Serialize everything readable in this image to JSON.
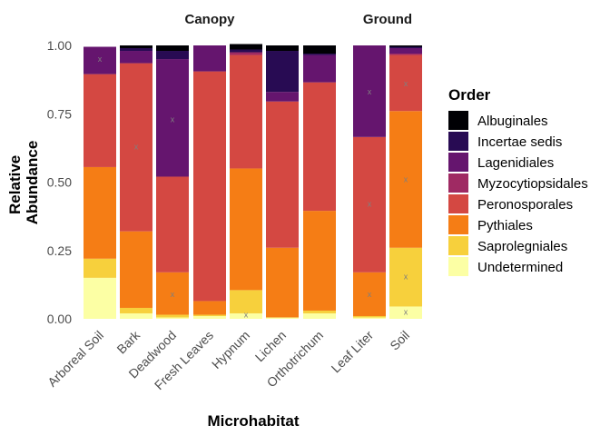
{
  "chart_data": {
    "type": "bar",
    "stacked": true,
    "facets": [
      "Canopy",
      "Ground"
    ],
    "xlabel": "Microhabitat",
    "ylabel": "Relative Abundance",
    "ylim": [
      0,
      1
    ],
    "yticks": [
      "0.00",
      "0.25",
      "0.50",
      "0.75",
      "1.00"
    ],
    "grid": false,
    "legend": {
      "title": "Order",
      "position": "right"
    },
    "categories": [
      {
        "facet": "Canopy",
        "name": "Arboreal Soil"
      },
      {
        "facet": "Canopy",
        "name": "Bark"
      },
      {
        "facet": "Canopy",
        "name": "Deadwood"
      },
      {
        "facet": "Canopy",
        "name": "Fresh Leaves"
      },
      {
        "facet": "Canopy",
        "name": "Hypnum"
      },
      {
        "facet": "Canopy",
        "name": "Lichen"
      },
      {
        "facet": "Canopy",
        "name": "Orthotrichum"
      },
      {
        "facet": "Ground",
        "name": "Leaf Liter"
      },
      {
        "facet": "Ground",
        "name": "Soil"
      }
    ],
    "series": [
      {
        "name": "Undetermined",
        "color": "#fcffa4",
        "values": [
          0.15,
          0.02,
          0.005,
          0.01,
          0.02,
          0.005,
          0.02,
          0.005,
          0.045
        ]
      },
      {
        "name": "Saprolegniales",
        "color": "#f7d03c",
        "values": [
          0.07,
          0.02,
          0.01,
          0.005,
          0.085,
          0.0,
          0.01,
          0.005,
          0.215
        ]
      },
      {
        "name": "Pythiales",
        "color": "#f57d15",
        "values": [
          0.335,
          0.28,
          0.155,
          0.05,
          0.445,
          0.255,
          0.365,
          0.16,
          0.5
        ]
      },
      {
        "name": "Peronosporales",
        "color": "#d44842",
        "values": [
          0.34,
          0.615,
          0.35,
          0.84,
          0.415,
          0.535,
          0.47,
          0.495,
          0.205
        ]
      },
      {
        "name": "Myzocytiopsidales",
        "color": "#9f2a63",
        "values": [
          0.0,
          0.0,
          0.0,
          0.0,
          0.01,
          0.0,
          0.0,
          0.0,
          0.005
        ]
      },
      {
        "name": "Lagenidiales",
        "color": "#65156e",
        "values": [
          0.1,
          0.045,
          0.43,
          0.095,
          0.0,
          0.035,
          0.1,
          0.335,
          0.02
        ]
      },
      {
        "name": "Incertae sedis",
        "color": "#280b53",
        "values": [
          0.0,
          0.01,
          0.03,
          0.0,
          0.01,
          0.15,
          0.005,
          0.0,
          0.005
        ]
      },
      {
        "name": "Albuginales",
        "color": "#000004",
        "values": [
          0.0,
          0.01,
          0.02,
          0.0,
          0.02,
          0.02,
          0.03,
          0.0,
          0.005
        ]
      }
    ],
    "markers": [
      {
        "category": "Arboreal Soil",
        "y": 0.95
      },
      {
        "category": "Bark",
        "y": 0.63
      },
      {
        "category": "Deadwood",
        "y": 0.73
      },
      {
        "category": "Deadwood",
        "y": 0.09
      },
      {
        "category": "Hypnum",
        "y": 0.015
      },
      {
        "category": "Leaf Liter",
        "y": 0.83
      },
      {
        "category": "Leaf Liter",
        "y": 0.42
      },
      {
        "category": "Leaf Liter",
        "y": 0.09
      },
      {
        "category": "Soil",
        "y": 0.86
      },
      {
        "category": "Soil",
        "y": 0.51
      },
      {
        "category": "Soil",
        "y": 0.155
      },
      {
        "category": "Soil",
        "y": 0.025
      }
    ],
    "marker_symbol": "x"
  }
}
